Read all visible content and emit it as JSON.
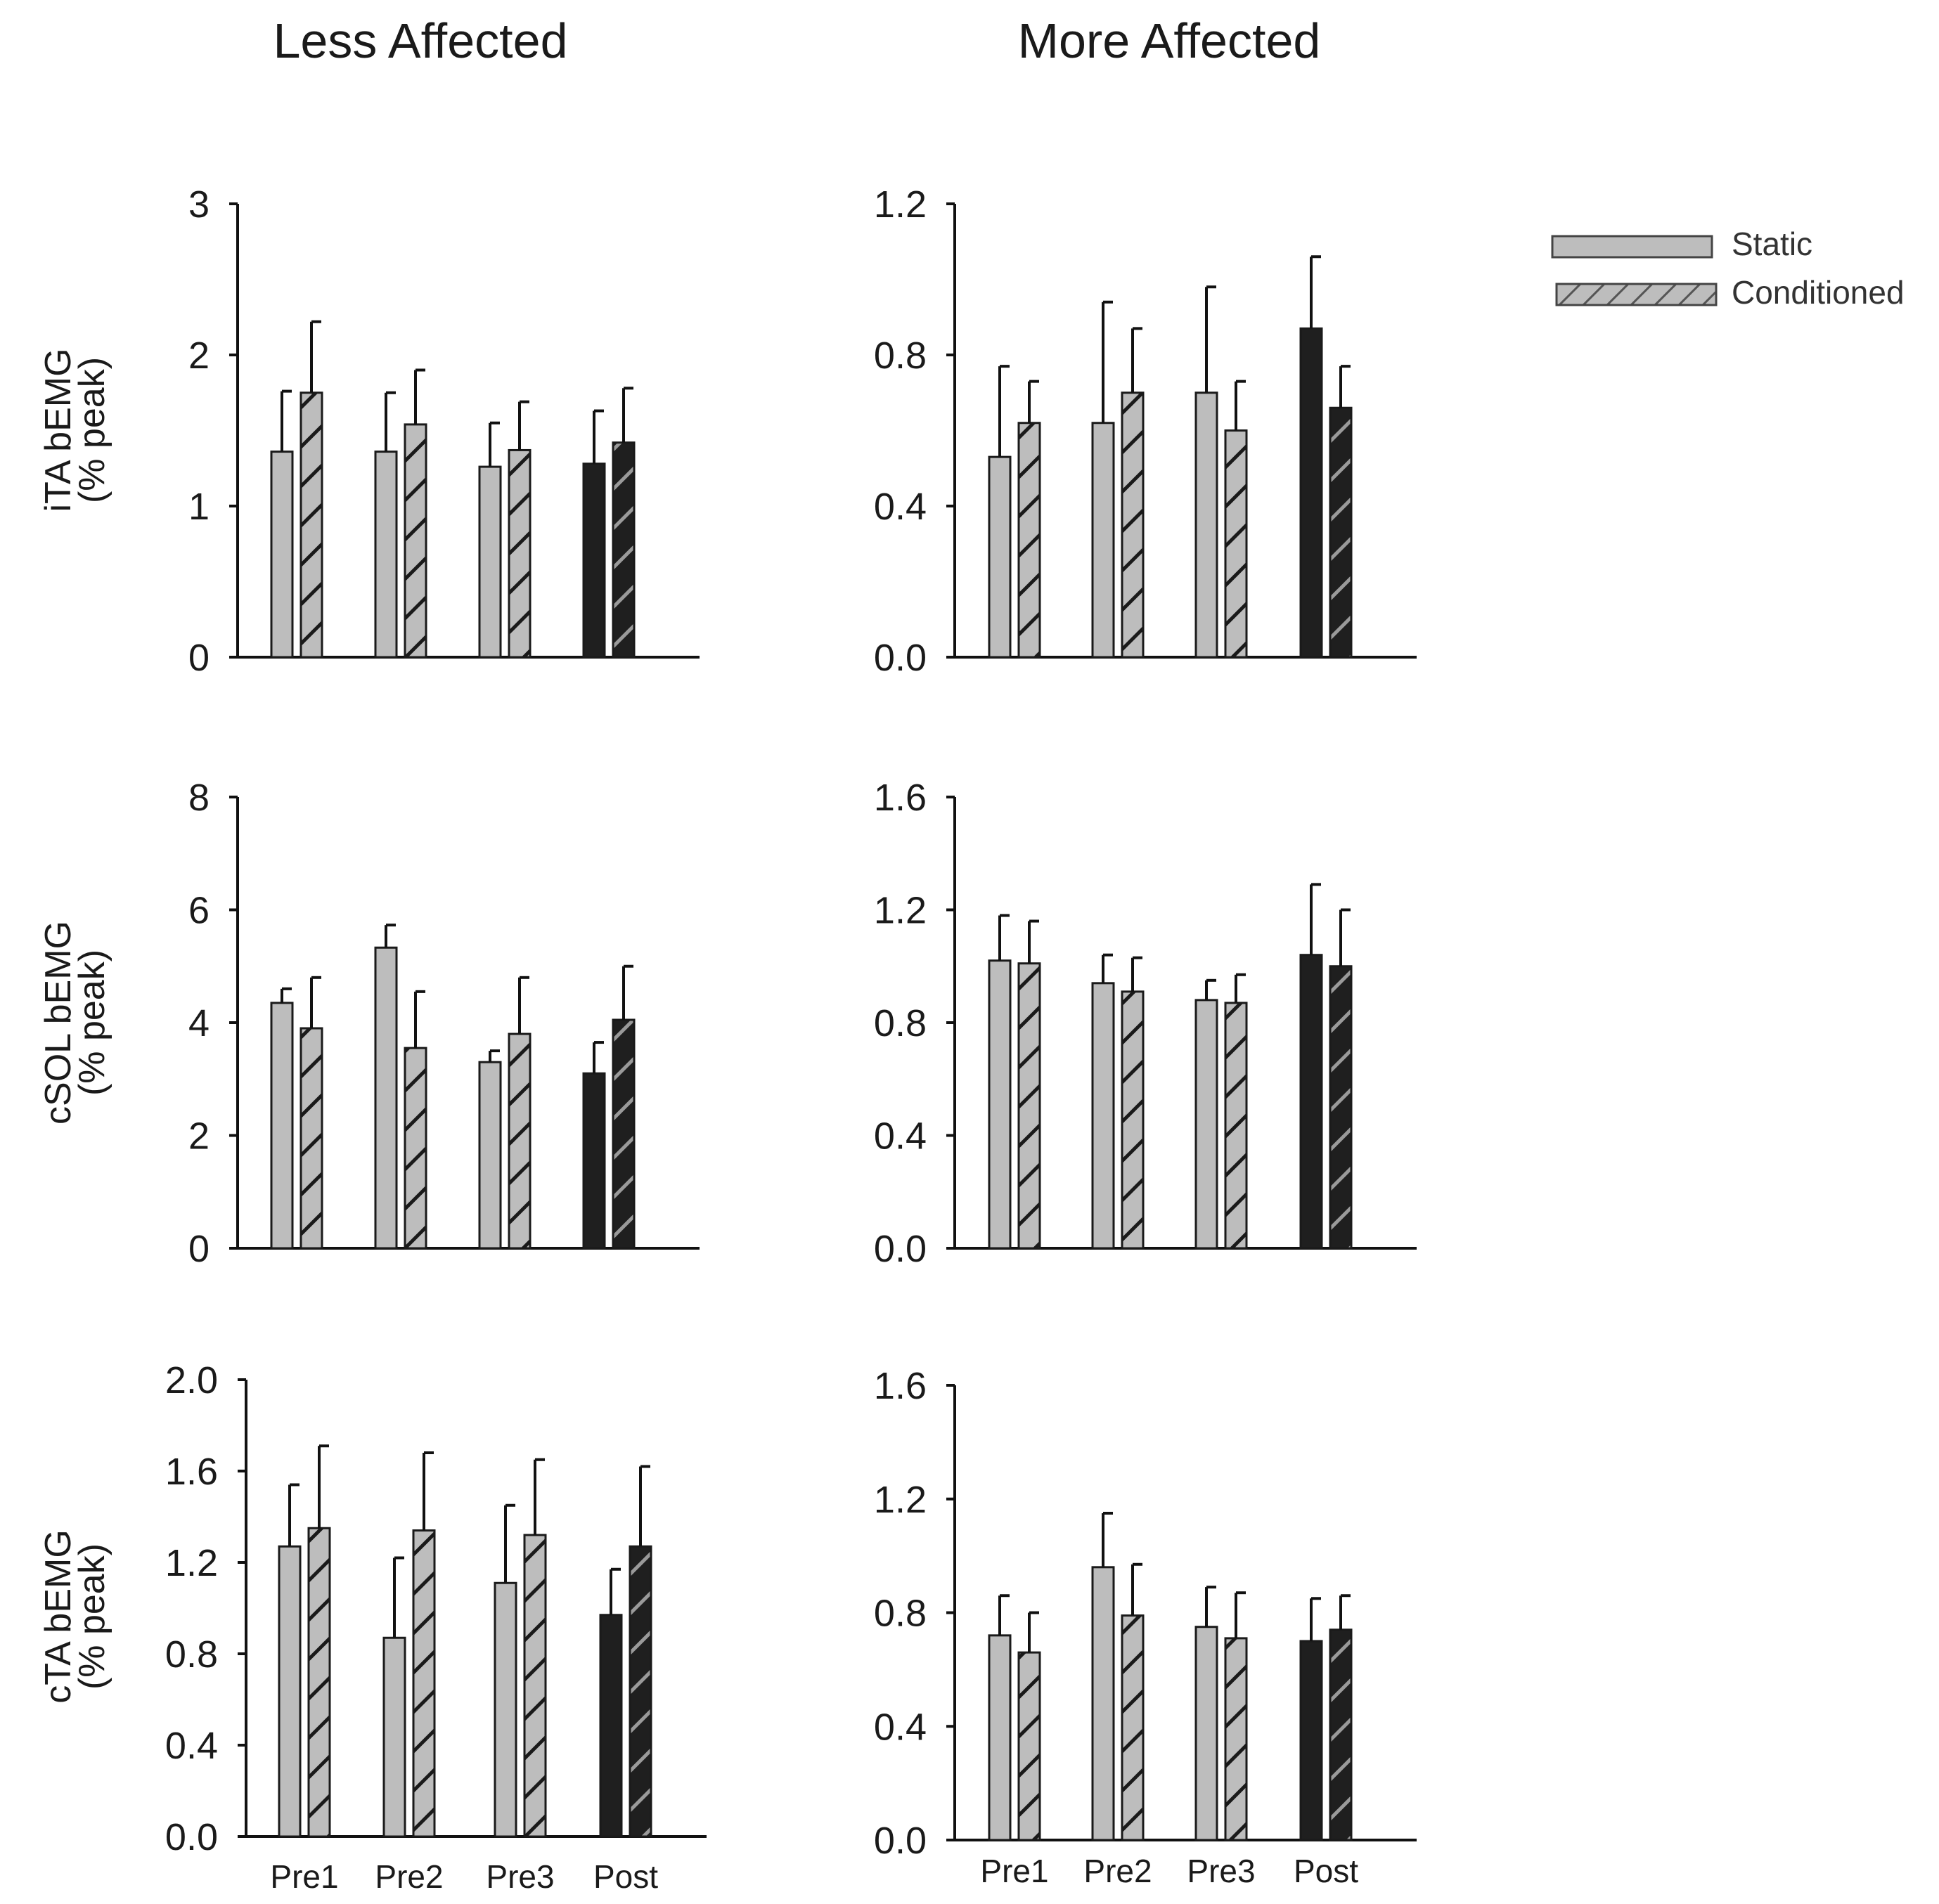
{
  "titles": {
    "left": "Less Affected",
    "right": "More Affected"
  },
  "legend": {
    "static_label": "Static",
    "conditioned_label": "Conditioned"
  },
  "colors": {
    "pre_fill": "#bdbdbd",
    "post_fill": "#1f1f1f",
    "outline": "#1a1a1a",
    "hatch_on_light": "#1a1a1a",
    "hatch_on_dark": "#9a9a9a"
  },
  "chart_data": [
    {
      "type": "bar",
      "panel": "less-affected-ita",
      "title": "Less Affected",
      "ylabel": [
        "iTA bEMG",
        "(% peak)"
      ],
      "categories": [
        "Pre1",
        "Pre2",
        "Pre3",
        "Post"
      ],
      "ylim": [
        0,
        3
      ],
      "yticks": [
        "0",
        "1",
        "2",
        "3"
      ],
      "series": [
        {
          "name": "Static",
          "values": [
            1.36,
            1.36,
            1.26,
            1.28
          ],
          "errors": [
            0.4,
            0.39,
            0.29,
            0.35
          ]
        },
        {
          "name": "Conditioned",
          "values": [
            1.75,
            1.54,
            1.37,
            1.42
          ],
          "errors": [
            0.47,
            0.36,
            0.32,
            0.36
          ]
        }
      ]
    },
    {
      "type": "bar",
      "panel": "more-affected-ita",
      "title": "More Affected",
      "ylabel": [],
      "categories": [
        "Pre1",
        "Pre2",
        "Pre3",
        "Post"
      ],
      "ylim": [
        0,
        1.2
      ],
      "yticks": [
        "0.0",
        "0.4",
        "0.8",
        "1.2"
      ],
      "series": [
        {
          "name": "Static",
          "values": [
            0.53,
            0.62,
            0.7,
            0.87
          ],
          "errors": [
            0.24,
            0.32,
            0.28,
            0.19
          ]
        },
        {
          "name": "Conditioned",
          "values": [
            0.62,
            0.7,
            0.6,
            0.66
          ],
          "errors": [
            0.11,
            0.17,
            0.13,
            0.11
          ]
        }
      ]
    },
    {
      "type": "bar",
      "panel": "less-affected-csol",
      "title": "",
      "ylabel": [
        "cSOL bEMG",
        "(% peak)"
      ],
      "categories": [
        "Pre1",
        "Pre2",
        "Pre3",
        "Post"
      ],
      "ylim": [
        0,
        8
      ],
      "yticks": [
        "0",
        "2",
        "4",
        "6",
        "8"
      ],
      "series": [
        {
          "name": "Static",
          "values": [
            4.35,
            5.33,
            3.3,
            3.1
          ],
          "errors": [
            0.25,
            0.4,
            0.2,
            0.55
          ]
        },
        {
          "name": "Conditioned",
          "values": [
            3.9,
            3.55,
            3.8,
            4.05
          ],
          "errors": [
            0.9,
            1.0,
            1.0,
            0.95
          ]
        }
      ]
    },
    {
      "type": "bar",
      "panel": "more-affected-csol",
      "title": "",
      "ylabel": [],
      "categories": [
        "Pre1",
        "Pre2",
        "Pre3",
        "Post"
      ],
      "ylim": [
        0,
        1.6
      ],
      "yticks": [
        "0.0",
        "0.4",
        "0.8",
        "1.2",
        "1.6"
      ],
      "series": [
        {
          "name": "Static",
          "values": [
            1.02,
            0.94,
            0.88,
            1.04
          ],
          "errors": [
            0.16,
            0.1,
            0.07,
            0.25
          ]
        },
        {
          "name": "Conditioned",
          "values": [
            1.01,
            0.91,
            0.87,
            1.0
          ],
          "errors": [
            0.15,
            0.12,
            0.1,
            0.2
          ]
        }
      ]
    },
    {
      "type": "bar",
      "panel": "less-affected-cta",
      "title": "",
      "ylabel": [
        "cTA bEMG",
        "(% peak)"
      ],
      "categories": [
        "Pre1",
        "Pre2",
        "Pre3",
        "Post"
      ],
      "ylim": [
        0,
        2.0
      ],
      "yticks": [
        "0.0",
        "0.4",
        "0.8",
        "1.2",
        "1.6",
        "2.0"
      ],
      "series": [
        {
          "name": "Static",
          "values": [
            1.27,
            0.87,
            1.11,
            0.97
          ],
          "errors": [
            0.27,
            0.35,
            0.34,
            0.2
          ]
        },
        {
          "name": "Conditioned",
          "values": [
            1.35,
            1.34,
            1.32,
            1.27
          ],
          "errors": [
            0.36,
            0.34,
            0.33,
            0.35
          ]
        }
      ]
    },
    {
      "type": "bar",
      "panel": "more-affected-cta",
      "title": "",
      "ylabel": [],
      "categories": [
        "Pre1",
        "Pre2",
        "Pre3",
        "Post"
      ],
      "ylim": [
        0,
        1.6
      ],
      "yticks": [
        "0.0",
        "0.4",
        "0.8",
        "1.2",
        "1.6"
      ],
      "series": [
        {
          "name": "Static",
          "values": [
            0.72,
            0.96,
            0.75,
            0.7
          ],
          "errors": [
            0.14,
            0.19,
            0.14,
            0.15
          ]
        },
        {
          "name": "Conditioned",
          "values": [
            0.66,
            0.79,
            0.71,
            0.74
          ],
          "errors": [
            0.14,
            0.18,
            0.16,
            0.12
          ]
        }
      ]
    }
  ]
}
